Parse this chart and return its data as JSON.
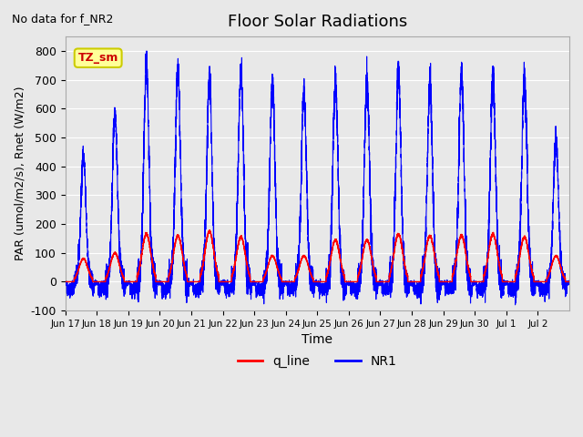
{
  "title": "Floor Solar Radiations",
  "subtitle": "No data for f_NR2",
  "xlabel": "Time",
  "ylabel": "PAR (umol/m2/s), Rnet (W/m2)",
  "ylim": [
    -100,
    850
  ],
  "yticks": [
    -100,
    0,
    100,
    200,
    300,
    400,
    500,
    600,
    700,
    800
  ],
  "background_color": "#e8e8e8",
  "plot_bg_color": "#e8e8e8",
  "legend_entries": [
    "q_line",
    "NR1"
  ],
  "legend_colors": [
    "#ff0000",
    "#0000ff"
  ],
  "tz_sm_label": "TZ_sm",
  "tz_sm_bg": "#ffff99",
  "tz_sm_border": "#cccc00",
  "num_days": 16,
  "x_tick_labels": [
    "Jun 17",
    "Jun 18",
    "Jun 19",
    "Jun 20",
    "Jun 21",
    "Jun 22",
    "Jun 23",
    "Jun 24",
    "Jun 25",
    "Jun 26",
    "Jun 27",
    "Jun 28",
    "Jun 29",
    "Jun 30",
    "Jul 1",
    "Jul 2"
  ],
  "line_color_NR1": "#0000ff",
  "line_color_q": "#ff0000",
  "peaks_NR1": [
    435,
    580,
    750,
    735,
    700,
    740,
    680,
    670,
    700,
    705,
    720,
    690,
    720,
    720,
    710,
    490
  ],
  "peaks_q": [
    80,
    100,
    165,
    160,
    175,
    155,
    90,
    90,
    145,
    145,
    165,
    160,
    160,
    165,
    155,
    90
  ],
  "grid_color": "#ffffff",
  "grid_alpha": 1.0
}
